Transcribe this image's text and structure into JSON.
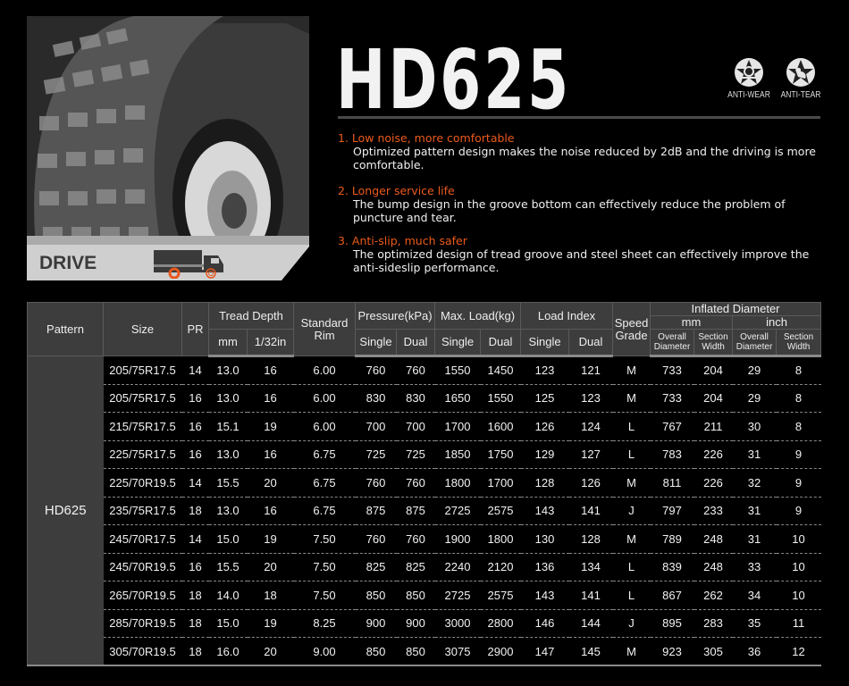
{
  "product": {
    "title": "HD625",
    "category": "DRIVE",
    "badges": [
      {
        "icon": "anti-wear-icon",
        "label": "ANTI-WEAR"
      },
      {
        "icon": "anti-tear-icon",
        "label": "ANTI-TEAR"
      }
    ],
    "accent_color": "#ec5a1c"
  },
  "features": [
    {
      "heading": "1. Low noise, more comfortable",
      "text": "Optimized pattern design makes the noise reduced by 2dB and the driving is more comfortable."
    },
    {
      "heading": "2. Longer service life",
      "text": "The bump design in the groove bottom can effectively reduce the problem of puncture and tear."
    },
    {
      "heading": "3. Anti-slip, much safer",
      "text": "The optimized design of tread groove and steel sheet can effectively improve the anti-sideslip performance."
    }
  ],
  "table": {
    "headers": {
      "pattern": "Pattern",
      "size": "Size",
      "pr": "PR",
      "tread_depth": "Tread Depth",
      "mm": "mm",
      "in32": "1/32in",
      "rim": "Standard Rim",
      "pressure": "Pressure(kPa)",
      "max_load": "Max. Load(kg)",
      "load_index": "Load Index",
      "single": "Single",
      "dual": "Dual",
      "speed": "Speed Grade",
      "inflated": "Inflated Diameter",
      "unit_mm": "mm",
      "unit_inch": "inch",
      "overall_diameter": "Overall Diameter",
      "section_width": "Section Width"
    },
    "pattern": "HD625",
    "rows": [
      [
        "205/75R17.5",
        "14",
        "13.0",
        "16",
        "6.00",
        "760",
        "760",
        "1550",
        "1450",
        "123",
        "121",
        "M",
        "733",
        "204",
        "29",
        "8"
      ],
      [
        "205/75R17.5",
        "16",
        "13.0",
        "16",
        "6.00",
        "830",
        "830",
        "1650",
        "1550",
        "125",
        "123",
        "M",
        "733",
        "204",
        "29",
        "8"
      ],
      [
        "215/75R17.5",
        "16",
        "15.1",
        "19",
        "6.00",
        "700",
        "700",
        "1700",
        "1600",
        "126",
        "124",
        "L",
        "767",
        "211",
        "30",
        "8"
      ],
      [
        "225/75R17.5",
        "16",
        "13.0",
        "16",
        "6.75",
        "725",
        "725",
        "1850",
        "1750",
        "129",
        "127",
        "L",
        "783",
        "226",
        "31",
        "9"
      ],
      [
        "225/70R19.5",
        "14",
        "15.5",
        "20",
        "6.75",
        "760",
        "760",
        "1800",
        "1700",
        "128",
        "126",
        "M",
        "811",
        "226",
        "32",
        "9"
      ],
      [
        "235/75R17.5",
        "18",
        "13.0",
        "16",
        "6.75",
        "875",
        "875",
        "2725",
        "2575",
        "143",
        "141",
        "J",
        "797",
        "233",
        "31",
        "9"
      ],
      [
        "245/70R17.5",
        "14",
        "15.0",
        "19",
        "7.50",
        "760",
        "760",
        "1900",
        "1800",
        "130",
        "128",
        "M",
        "789",
        "248",
        "31",
        "10"
      ],
      [
        "245/70R19.5",
        "16",
        "15.5",
        "20",
        "7.50",
        "825",
        "825",
        "2240",
        "2120",
        "136",
        "134",
        "L",
        "839",
        "248",
        "33",
        "10"
      ],
      [
        "265/70R19.5",
        "18",
        "14.0",
        "18",
        "7.50",
        "850",
        "850",
        "2725",
        "2575",
        "143",
        "141",
        "L",
        "867",
        "262",
        "34",
        "10"
      ],
      [
        "285/70R19.5",
        "18",
        "15.0",
        "19",
        "8.25",
        "900",
        "900",
        "3000",
        "2800",
        "146",
        "144",
        "J",
        "895",
        "283",
        "35",
        "11"
      ],
      [
        "305/70R19.5",
        "18",
        "16.0",
        "20",
        "9.00",
        "850",
        "850",
        "3075",
        "2900",
        "147",
        "145",
        "M",
        "923",
        "305",
        "36",
        "12"
      ]
    ]
  }
}
